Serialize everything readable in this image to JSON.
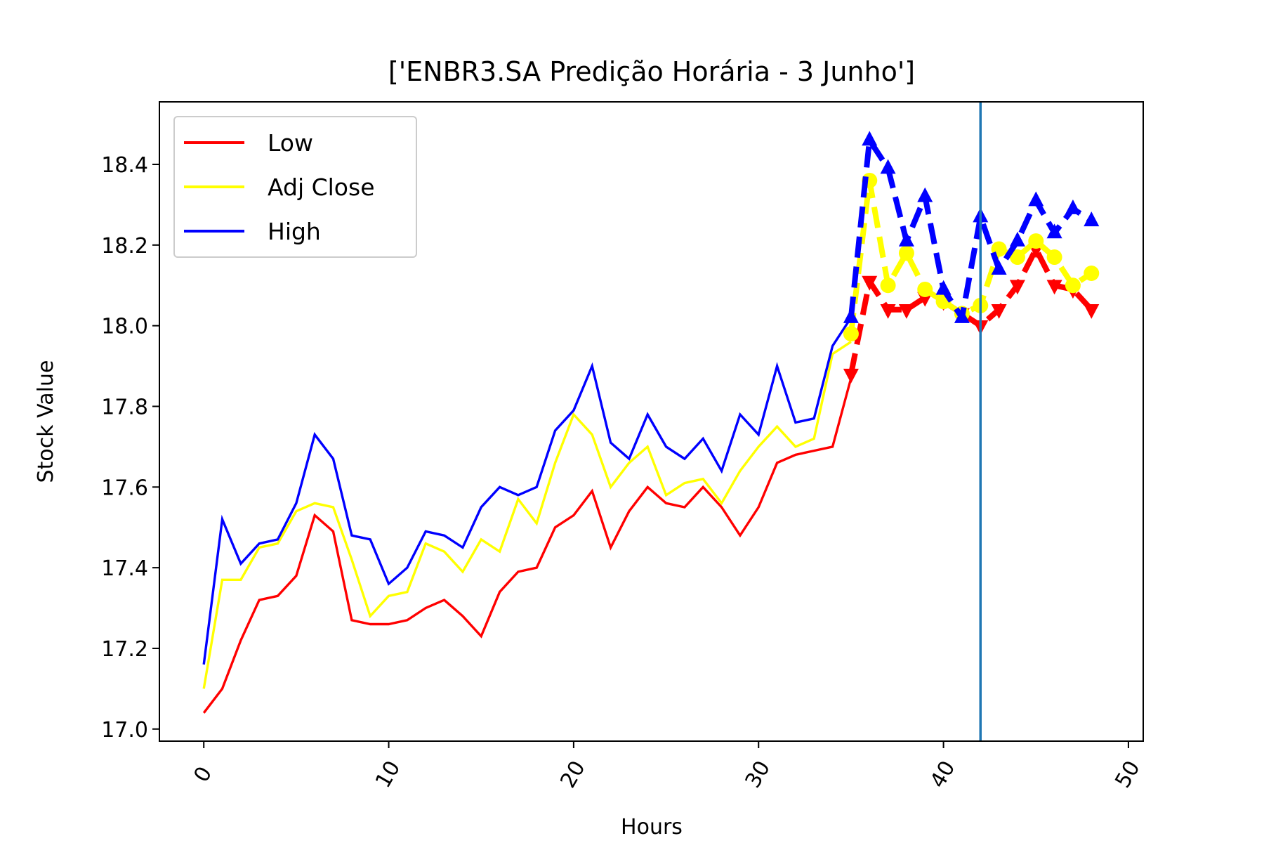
{
  "chart_data": {
    "type": "line",
    "title": "['ENBR3.SA Predição Horária - 3 Junho']",
    "xlabel": "Hours",
    "ylabel": "Stock Value",
    "xlim": [
      -2.4,
      50.8
    ],
    "ylim": [
      16.97,
      18.555
    ],
    "xticks": [
      0,
      10,
      20,
      30,
      40,
      50
    ],
    "yticks": [
      17.0,
      17.2,
      17.4,
      17.6,
      17.8,
      18.0,
      18.2,
      18.4
    ],
    "xtick_labels": [
      "0",
      "10",
      "20",
      "30",
      "40",
      "50"
    ],
    "ytick_labels": [
      "17.0",
      "17.2",
      "17.4",
      "17.6",
      "17.8",
      "18.0",
      "18.2",
      "18.4"
    ],
    "grid": false,
    "legend_position": "top-left",
    "vline_x": 42,
    "vline_color": "#1f77b4",
    "legend": [
      {
        "name": "Low",
        "color": "#ff0000"
      },
      {
        "name": "Adj Close",
        "color": "#ffff00"
      },
      {
        "name": "High",
        "color": "#0000ff"
      }
    ],
    "series": [
      {
        "name": "Low",
        "color": "#ff0000",
        "x": [
          0,
          1,
          2,
          3,
          4,
          5,
          6,
          7,
          8,
          9,
          10,
          11,
          12,
          13,
          14,
          15,
          16,
          17,
          18,
          19,
          20,
          21,
          22,
          23,
          24,
          25,
          26,
          27,
          28,
          29,
          30,
          31,
          32,
          33,
          34,
          35
        ],
        "values": [
          17.04,
          17.1,
          17.22,
          17.32,
          17.33,
          17.38,
          17.53,
          17.49,
          17.27,
          17.26,
          17.26,
          17.27,
          17.3,
          17.32,
          17.28,
          17.23,
          17.34,
          17.39,
          17.4,
          17.5,
          17.53,
          17.59,
          17.45,
          17.54,
          17.6,
          17.56,
          17.55,
          17.6,
          17.55,
          17.48,
          17.55,
          17.66,
          17.68,
          17.69,
          17.7,
          17.87
        ]
      },
      {
        "name": "Adj Close",
        "color": "#ffff00",
        "x": [
          0,
          1,
          2,
          3,
          4,
          5,
          6,
          7,
          8,
          9,
          10,
          11,
          12,
          13,
          14,
          15,
          16,
          17,
          18,
          19,
          20,
          21,
          22,
          23,
          24,
          25,
          26,
          27,
          28,
          29,
          30,
          31,
          32,
          33,
          34,
          35
        ],
        "values": [
          17.1,
          17.37,
          17.37,
          17.45,
          17.46,
          17.54,
          17.56,
          17.55,
          17.42,
          17.28,
          17.33,
          17.34,
          17.46,
          17.44,
          17.39,
          17.47,
          17.44,
          17.57,
          17.51,
          17.66,
          17.78,
          17.73,
          17.6,
          17.66,
          17.7,
          17.58,
          17.61,
          17.62,
          17.56,
          17.64,
          17.7,
          17.75,
          17.7,
          17.72,
          17.93,
          17.96
        ]
      },
      {
        "name": "High",
        "color": "#0000ff",
        "x": [
          0,
          1,
          2,
          3,
          4,
          5,
          6,
          7,
          8,
          9,
          10,
          11,
          12,
          13,
          14,
          15,
          16,
          17,
          18,
          19,
          20,
          21,
          22,
          23,
          24,
          25,
          26,
          27,
          28,
          29,
          30,
          31,
          32,
          33,
          34,
          35
        ],
        "values": [
          17.16,
          17.52,
          17.41,
          17.46,
          17.47,
          17.56,
          17.73,
          17.67,
          17.48,
          17.47,
          17.36,
          17.4,
          17.49,
          17.48,
          17.45,
          17.55,
          17.6,
          17.58,
          17.6,
          17.74,
          17.79,
          17.9,
          17.71,
          17.67,
          17.78,
          17.7,
          17.67,
          17.72,
          17.64,
          17.78,
          17.73,
          17.9,
          17.76,
          17.77,
          17.95,
          18.02
        ]
      }
    ],
    "prediction_series": [
      {
        "name": "Low",
        "color": "#ff0000",
        "marker": "triangle-down",
        "x": [
          35,
          36,
          37,
          38,
          39,
          40,
          41,
          42,
          43,
          44,
          45,
          46,
          47,
          48
        ],
        "values": [
          17.88,
          18.11,
          18.04,
          18.04,
          18.07,
          18.06,
          18.03,
          18.0,
          18.04,
          18.1,
          18.19,
          18.1,
          18.09,
          18.04
        ]
      },
      {
        "name": "Adj Close",
        "color": "#ffff00",
        "marker": "circle",
        "x": [
          35,
          36,
          37,
          38,
          39,
          40,
          41,
          42,
          43,
          44,
          45,
          46,
          47,
          48
        ],
        "values": [
          17.98,
          18.36,
          18.1,
          18.18,
          18.09,
          18.06,
          18.03,
          18.05,
          18.19,
          18.17,
          18.21,
          18.17,
          18.1,
          18.13
        ]
      },
      {
        "name": "High",
        "color": "#0000ff",
        "marker": "triangle-up",
        "x": [
          35,
          36,
          37,
          38,
          39,
          40,
          41,
          42,
          43,
          44,
          45,
          46,
          47,
          48
        ],
        "values": [
          18.02,
          18.46,
          18.39,
          18.21,
          18.32,
          18.09,
          18.02,
          18.27,
          18.14,
          18.21,
          18.31,
          18.23,
          18.29,
          18.26
        ]
      }
    ]
  }
}
